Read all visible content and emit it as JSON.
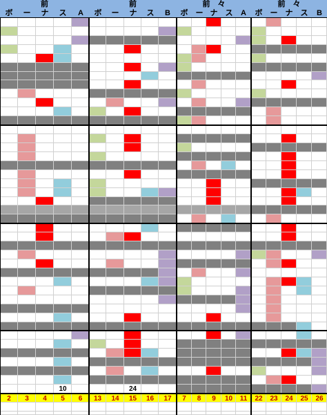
{
  "palette": {
    "W": "#ffffff",
    "G": "#808080",
    "L": "#a6a6a6",
    "R": "#ff0000",
    "P": "#e6999a",
    "B": "#92cddc",
    "V": "#b1a0c7",
    "N": "#c4d79b",
    "Y": "#ffff00"
  },
  "panels": [
    {
      "title": "前",
      "sub": [
        "ボ",
        "ー",
        "ナ",
        "ス",
        "A"
      ]
    },
    {
      "title": "前",
      "sub": [
        "ボ",
        "ー",
        "ナ",
        "ス",
        "B"
      ]
    },
    {
      "title": "前　々",
      "sub": [
        "ボ",
        "ー",
        "ナ",
        "ス",
        "A"
      ]
    },
    {
      "title": "前　々",
      "sub": [
        "ボ",
        "ー",
        "ナ",
        "ス",
        "B"
      ]
    }
  ],
  "grid_rows": [
    "WWWWV WWWWW WWRWW WPWWW",
    "NWWWW WWWWV NWWWW NWWWW",
    "WWWWV GGGGG WWWWV NWRWW",
    "NWWBW WWRWW WPRWW GGGGG",
    "WWRBW WWWWW NPWWW NWWWW",
    "GGGGG WWRWV NWWWW GGGGG",
    "GGGGG WWWBW GGGGG WWWWV",
    "GGGGG WWRWW WPWWW WWRWW",
    "WPWWW GGGGG NWWWW NWWWW",
    "WWRWW WPWWV WPWWV GGGGG",
    "WWWBW NWRWW GGGGG WPWWW",
    "GGGGG GGGGG NPWWW WPWWW",
    "WWWWW WWWWW WWWWW WWWWW",
    "WPWWW NWRWW GGGGG WWRWW",
    "WPWWW WWRWW NWWWW GGGGG",
    "WPWWW NWWWW GGGGG WWRWW",
    "GGGGG GGGGG WPWBW WWRWW",
    "WPWWW WWRWW GGGGG WWRWW",
    "WPWBW NWWWW WWRWW GGGGG",
    "WPWBW NWWBV WWRWW WWRBW",
    "WWRWW GGGGG WWRWW WWRWW",
    "LLLLL LLLLL LLLLL GGGGG",
    "GGGGG GGGGG WPWBW WPWWW",
    "WWRWW WWWBW GGGGG WWRWW",
    "WWRWW WPRWW WWWWW WWRWW",
    "GGGGG GGGGG GGGGG GGGGG",
    "WPWWW WWWWV WWWWV NPWWV",
    "WWRWW WPWWV GGGGG WPRWW",
    "GGGGG GGGGV WPWWV WWWWW",
    "WWWBW WWWBV NWWWW WPRBW",
    "WPWWW GGGGG NWWWV WPWBW",
    "WWWWW WWWWV GGGGV WPWWW",
    "GGGGG WWWWW WWWWV WPWWW",
    "WWWBW WWRWW WWRWW WPWWW",
    "GGGGG GGGGG GGGGG GGGBW",
    "WWWWV WWRWW WWRWV WWWBW",
    "WWWBW NWRWW GGGGG GGGGG",
    "GGGGG WPRBW GGGGG WWRBV",
    "WWWBW GGGGG GGGGG GGGGV",
    "GGGGG WPWBW WWRWW NWWWV",
    "WWWBW GGGGG GGGGG WPRWW",
    "WWWWW WWWWW GGGGG GGGGV",
    "YYYYY YYYYY YYYYY YYYYY",
    "WWWWW WWWWW WWWWW WWWWW",
    "WWWWW WWWWW WWWWW WWWWW",
    "WWWWW WWWWW WWWWW WWWWW"
  ],
  "column_labels": [
    [
      "2",
      "3",
      "4",
      "5",
      "6"
    ],
    [
      "13",
      "14",
      "15",
      "16",
      "17"
    ],
    [
      "7",
      "8",
      "9",
      "10",
      "11"
    ],
    [
      "22",
      "23",
      "24",
      "25",
      "26"
    ]
  ],
  "cell_values": [
    {
      "panel": 0,
      "col": 3,
      "row": 41,
      "text": "10"
    },
    {
      "panel": 1,
      "col": 2,
      "row": 41,
      "text": "24"
    }
  ]
}
